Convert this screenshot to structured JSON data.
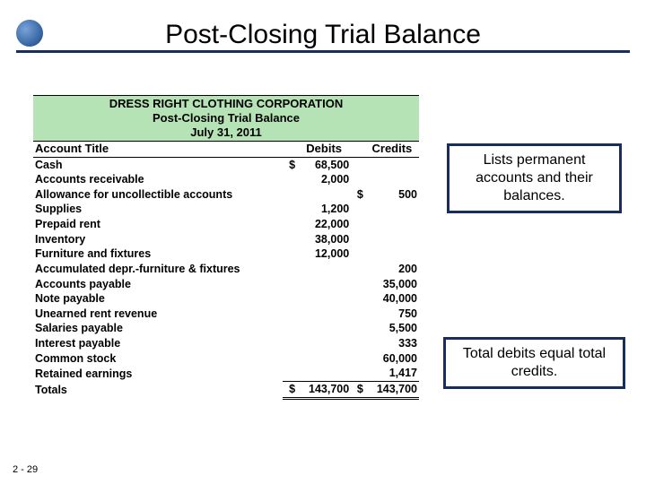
{
  "slide": {
    "title": "Post-Closing Trial Balance",
    "page_number": "2 - 29",
    "bullet_color": "#3b6aa8",
    "rule_color": "#1a2e5c"
  },
  "callouts": {
    "permanent": "Lists permanent accounts and their balances.",
    "totals": "Total debits equal total credits."
  },
  "trial_balance": {
    "header_bg": "#b6e3b6",
    "company": "DRESS RIGHT CLOTHING CORPORATION",
    "statement": "Post-Closing Trial Balance",
    "date": "July 31, 2011",
    "col_account": "Account Title",
    "col_debits": "Debits",
    "col_credits": "Credits",
    "rows": [
      {
        "account": "Cash",
        "debit_sym": "$",
        "debit": "68,500",
        "credit_sym": "",
        "credit": ""
      },
      {
        "account": "Accounts receivable",
        "debit_sym": "",
        "debit": "2,000",
        "credit_sym": "",
        "credit": ""
      },
      {
        "account": "Allowance for uncollectible accounts",
        "debit_sym": "",
        "debit": "",
        "credit_sym": "$",
        "credit": "500"
      },
      {
        "account": "Supplies",
        "debit_sym": "",
        "debit": "1,200",
        "credit_sym": "",
        "credit": ""
      },
      {
        "account": "Prepaid rent",
        "debit_sym": "",
        "debit": "22,000",
        "credit_sym": "",
        "credit": ""
      },
      {
        "account": "Inventory",
        "debit_sym": "",
        "debit": "38,000",
        "credit_sym": "",
        "credit": ""
      },
      {
        "account": "Furniture and fixtures",
        "debit_sym": "",
        "debit": "12,000",
        "credit_sym": "",
        "credit": ""
      },
      {
        "account": "Accumulated depr.-furniture & fixtures",
        "debit_sym": "",
        "debit": "",
        "credit_sym": "",
        "credit": "200"
      },
      {
        "account": "Accounts payable",
        "debit_sym": "",
        "debit": "",
        "credit_sym": "",
        "credit": "35,000"
      },
      {
        "account": "Note payable",
        "debit_sym": "",
        "debit": "",
        "credit_sym": "",
        "credit": "40,000"
      },
      {
        "account": "Unearned rent revenue",
        "debit_sym": "",
        "debit": "",
        "credit_sym": "",
        "credit": "750"
      },
      {
        "account": "Salaries payable",
        "debit_sym": "",
        "debit": "",
        "credit_sym": "",
        "credit": "5,500"
      },
      {
        "account": "Interest payable",
        "debit_sym": "",
        "debit": "",
        "credit_sym": "",
        "credit": "333"
      },
      {
        "account": "Common stock",
        "debit_sym": "",
        "debit": "",
        "credit_sym": "",
        "credit": "60,000"
      },
      {
        "account": "Retained earnings",
        "debit_sym": "",
        "debit": "",
        "credit_sym": "",
        "credit": "1,417"
      }
    ],
    "totals_label": "Totals",
    "totals_debit_sym": "$",
    "totals_debit": "143,700",
    "totals_credit_sym": "$",
    "totals_credit": "143,700"
  },
  "callout_style": {
    "border_color": "#1a2e5c",
    "font_size": 16
  }
}
